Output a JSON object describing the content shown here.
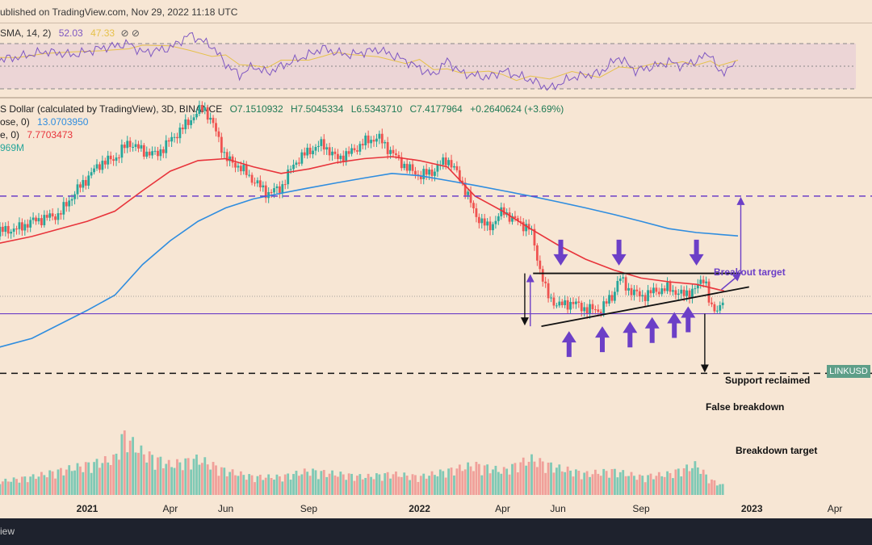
{
  "header": {
    "published": "ublished on TradingView.com, Nov 29, 2022 11:18 UTC"
  },
  "rsi": {
    "legend_name": "SMA, 14, 2)",
    "value_rsi": "52.03",
    "value_sma": "47.33",
    "color_rsi": "#7e57c2",
    "color_sma": "#e6c14a"
  },
  "ohlc": {
    "title": "S Dollar (calculated by TradingView), 3D, BINANCE",
    "o": "O7.1510932",
    "h": "H7.5045334",
    "l": "L6.5343710",
    "c": "C7.4177964",
    "change": "+0.2640624 (+3.69%)"
  },
  "indicators": {
    "ma200_label": "ose, 0)",
    "ma200_value": "13.0703950",
    "ma50_label": "e, 0)",
    "ma50_value": "7.7703473",
    "vol_value": "969M",
    "color_ma200": "#2f8ddf",
    "color_ma50": "#e8343b",
    "color_vol": "#26a69a"
  },
  "price_tag": "LINKUSD",
  "annotations": {
    "breakout_target": "Breakout target",
    "support_reclaimed": "Support reclaimed",
    "false_breakdown": "False breakdown",
    "breakdown_target": "Breakdown target",
    "color_purple": "#6c3fc7"
  },
  "x_axis": {
    "ticks": [
      {
        "label": "2021",
        "month": 0
      },
      {
        "label": "Apr",
        "month": 3
      },
      {
        "label": "Jun",
        "month": 5
      },
      {
        "label": "Sep",
        "month": 8
      },
      {
        "label": "2022",
        "month": 12
      },
      {
        "label": "Apr",
        "month": 15
      },
      {
        "label": "Jun",
        "month": 17
      },
      {
        "label": "Sep",
        "month": 20
      },
      {
        "label": "2023",
        "month": 24
      },
      {
        "label": "Apr",
        "month": 27
      }
    ]
  },
  "footer": {
    "brand": "iew"
  },
  "chart_data": {
    "type": "candlestick",
    "symbol": "LINKUSD",
    "interval": "3D",
    "x_unit": "months since Jan 2021",
    "ma50_last": 7.7703473,
    "ma200_last": 13.070395,
    "last_close": 7.4177964,
    "levels": {
      "breakout_target": 19.0,
      "triangle_top": 9.2,
      "triangle_base_start": 5.6,
      "triangle_base_end": 8.1,
      "support": 6.3,
      "breakdown_target": 3.6
    },
    "price_path": [
      [
        -3.5,
        13.5
      ],
      [
        -2.5,
        14.0
      ],
      [
        -2.0,
        15.0
      ],
      [
        -1.0,
        16.0
      ],
      [
        0.0,
        22.5
      ],
      [
        0.5,
        26.0
      ],
      [
        1.0,
        27.0
      ],
      [
        1.5,
        31.5
      ],
      [
        2.0,
        29.0
      ],
      [
        2.5,
        28.0
      ],
      [
        3.0,
        32.0
      ],
      [
        3.5,
        36.5
      ],
      [
        4.2,
        44.0
      ],
      [
        4.5,
        38.0
      ],
      [
        5.0,
        27.0
      ],
      [
        5.5,
        25.0
      ],
      [
        6.0,
        22.0
      ],
      [
        6.5,
        19.5
      ],
      [
        7.0,
        20.5
      ],
      [
        7.5,
        26.0
      ],
      [
        8.0,
        29.0
      ],
      [
        8.5,
        31.0
      ],
      [
        9.0,
        27.0
      ],
      [
        9.5,
        28.5
      ],
      [
        10.0,
        31.5
      ],
      [
        10.5,
        33.0
      ],
      [
        11.0,
        28.5
      ],
      [
        11.5,
        25.0
      ],
      [
        12.0,
        23.0
      ],
      [
        12.5,
        24.0
      ],
      [
        13.0,
        27.0
      ],
      [
        13.5,
        22.0
      ],
      [
        14.0,
        16.0
      ],
      [
        14.5,
        14.0
      ],
      [
        15.0,
        16.5
      ],
      [
        15.5,
        15.0
      ],
      [
        16.0,
        14.0
      ],
      [
        16.3,
        10.0
      ],
      [
        16.6,
        7.5
      ],
      [
        17.0,
        6.8
      ],
      [
        17.5,
        7.0
      ],
      [
        18.0,
        6.6
      ],
      [
        18.5,
        6.5
      ],
      [
        19.0,
        7.5
      ],
      [
        19.2,
        8.9
      ],
      [
        19.5,
        8.0
      ],
      [
        20.0,
        7.4
      ],
      [
        20.5,
        7.8
      ],
      [
        21.0,
        8.0
      ],
      [
        21.5,
        7.5
      ],
      [
        22.0,
        8.0
      ],
      [
        22.3,
        9.0
      ],
      [
        22.5,
        6.6
      ],
      [
        22.7,
        6.4
      ],
      [
        23.0,
        7.4
      ]
    ],
    "ma50_path": [
      [
        -3.5,
        12.0
      ],
      [
        -2.0,
        13.0
      ],
      [
        0.0,
        15.0
      ],
      [
        1.0,
        16.5
      ],
      [
        2.0,
        20.0
      ],
      [
        3.0,
        24.0
      ],
      [
        4.0,
        26.5
      ],
      [
        5.0,
        27.0
      ],
      [
        6.0,
        25.0
      ],
      [
        7.0,
        23.5
      ],
      [
        8.0,
        24.5
      ],
      [
        9.0,
        26.0
      ],
      [
        10.0,
        27.0
      ],
      [
        11.0,
        27.5
      ],
      [
        12.0,
        26.5
      ],
      [
        13.0,
        25.0
      ],
      [
        14.0,
        19.0
      ],
      [
        15.0,
        16.5
      ],
      [
        16.0,
        14.0
      ],
      [
        17.0,
        12.0
      ],
      [
        18.0,
        10.5
      ],
      [
        19.0,
        9.5
      ],
      [
        20.0,
        8.8
      ],
      [
        21.0,
        8.5
      ],
      [
        22.0,
        8.3
      ],
      [
        23.0,
        7.8
      ]
    ],
    "ma200_path": [
      [
        -3.5,
        4.5
      ],
      [
        -2.0,
        5.0
      ],
      [
        0.0,
        6.5
      ],
      [
        1.0,
        7.5
      ],
      [
        2.0,
        10.0
      ],
      [
        3.0,
        12.5
      ],
      [
        4.0,
        15.0
      ],
      [
        5.0,
        17.0
      ],
      [
        6.0,
        18.5
      ],
      [
        7.0,
        19.5
      ],
      [
        8.0,
        20.5
      ],
      [
        9.0,
        21.5
      ],
      [
        10.0,
        22.5
      ],
      [
        11.0,
        23.5
      ],
      [
        12.0,
        23.0
      ],
      [
        13.0,
        22.0
      ],
      [
        14.0,
        21.0
      ],
      [
        15.0,
        20.0
      ],
      [
        16.0,
        19.0
      ],
      [
        17.0,
        18.0
      ],
      [
        18.0,
        17.0
      ],
      [
        19.0,
        16.0
      ],
      [
        20.0,
        15.0
      ],
      [
        21.0,
        14.0
      ],
      [
        22.0,
        13.5
      ],
      [
        23.5,
        13.07
      ]
    ],
    "rsi_path": [
      [
        -3.5,
        55
      ],
      [
        -2.5,
        58
      ],
      [
        -1.5,
        63
      ],
      [
        -0.5,
        60
      ],
      [
        0.5,
        66
      ],
      [
        1.5,
        70
      ],
      [
        2.0,
        62
      ],
      [
        3.0,
        66
      ],
      [
        3.7,
        78
      ],
      [
        4.5,
        68
      ],
      [
        5.0,
        52
      ],
      [
        5.5,
        42
      ],
      [
        6.0,
        50
      ],
      [
        6.5,
        44
      ],
      [
        7.0,
        50
      ],
      [
        8.0,
        60
      ],
      [
        8.5,
        66
      ],
      [
        9.0,
        62
      ],
      [
        9.5,
        60
      ],
      [
        10.5,
        65
      ],
      [
        11.5,
        55
      ],
      [
        12.0,
        48
      ],
      [
        12.5,
        42
      ],
      [
        13.0,
        55
      ],
      [
        13.5,
        44
      ],
      [
        14.5,
        40
      ],
      [
        15.0,
        46
      ],
      [
        15.5,
        42
      ],
      [
        16.0,
        38
      ],
      [
        16.7,
        30
      ],
      [
        17.5,
        40
      ],
      [
        18.5,
        44
      ],
      [
        19.2,
        58
      ],
      [
        19.8,
        46
      ],
      [
        20.5,
        50
      ],
      [
        21.0,
        54
      ],
      [
        21.5,
        50
      ],
      [
        22.0,
        55
      ],
      [
        22.5,
        62
      ],
      [
        22.8,
        44
      ],
      [
        23.5,
        52
      ]
    ],
    "rsi_levels": [
      70,
      50,
      30
    ],
    "volume_path": [
      [
        -3.5,
        0.2
      ],
      [
        -2.0,
        0.3
      ],
      [
        0.0,
        0.5
      ],
      [
        1.0,
        0.6
      ],
      [
        1.3,
        1.0
      ],
      [
        2.0,
        0.7
      ],
      [
        3.0,
        0.5
      ],
      [
        4.0,
        0.6
      ],
      [
        5.0,
        0.4
      ],
      [
        6.0,
        0.3
      ],
      [
        7.0,
        0.3
      ],
      [
        8.0,
        0.4
      ],
      [
        9.0,
        0.35
      ],
      [
        10.0,
        0.3
      ],
      [
        11.0,
        0.35
      ],
      [
        12.0,
        0.3
      ],
      [
        13.0,
        0.4
      ],
      [
        14.0,
        0.5
      ],
      [
        15.0,
        0.4
      ],
      [
        16.0,
        0.6
      ],
      [
        17.0,
        0.45
      ],
      [
        18.0,
        0.35
      ],
      [
        19.0,
        0.4
      ],
      [
        20.0,
        0.3
      ],
      [
        21.0,
        0.35
      ],
      [
        22.0,
        0.5
      ],
      [
        22.5,
        0.25
      ],
      [
        23.0,
        0.15
      ]
    ]
  }
}
